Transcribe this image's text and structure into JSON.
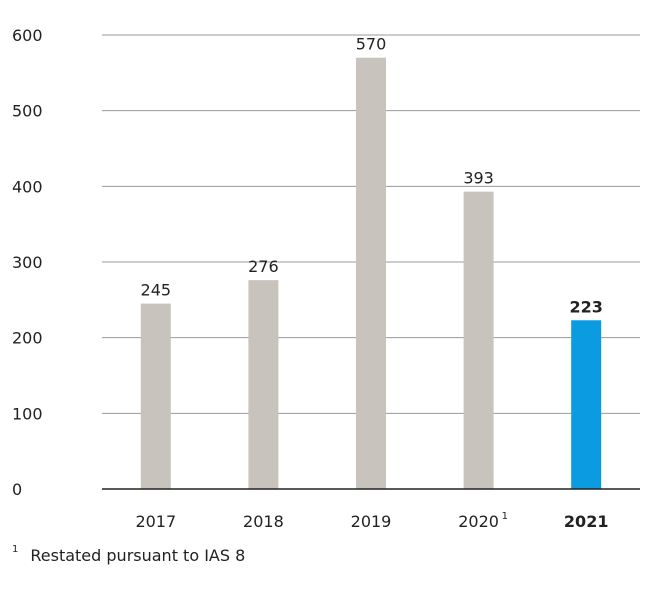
{
  "chart_data": {
    "type": "bar",
    "categories": [
      "2017",
      "2018",
      "2019",
      "2020",
      "2021"
    ],
    "category_markers": [
      "",
      "",
      "",
      "1",
      ""
    ],
    "values": [
      245,
      276,
      570,
      393,
      223
    ],
    "value_labels": [
      "245",
      "276",
      "570",
      "393",
      "223"
    ],
    "highlight_index": 4,
    "ylim": [
      0,
      600
    ],
    "yticks": [
      "0",
      "100",
      "200",
      "300",
      "400",
      "500",
      "600"
    ],
    "grid": true,
    "colors": {
      "bar": "#c8c4bd",
      "highlight": "#0a9be0",
      "grid": "#9a9a9a",
      "axis": "#222222",
      "text": "#222222"
    }
  },
  "footnote": {
    "marker": "1",
    "text": "Restated pursuant to IAS 8"
  }
}
